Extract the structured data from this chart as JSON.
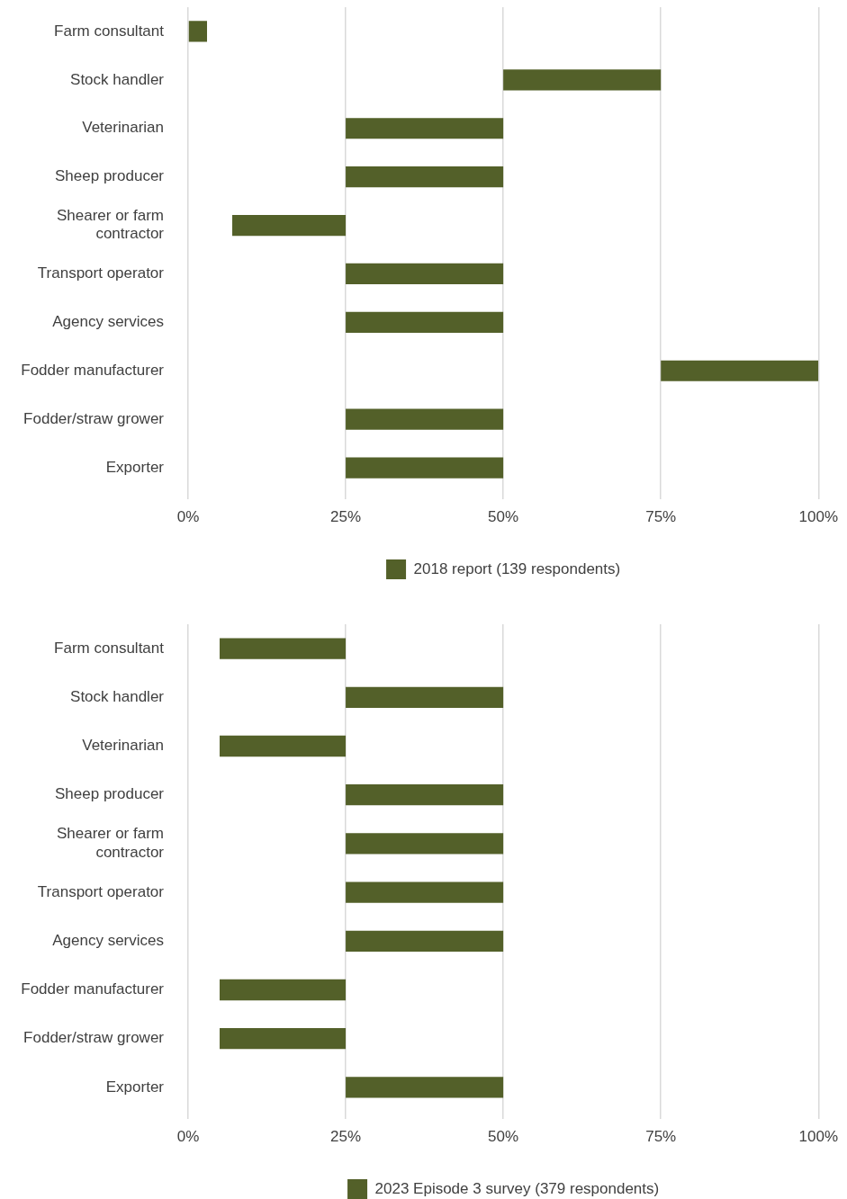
{
  "chart_data": [
    {
      "type": "bar",
      "orientation": "horizontal",
      "categories": [
        "Farm consultant",
        "Stock handler",
        "Veterinarian",
        "Sheep producer",
        "Shearer or farm contractor",
        "Transport operator",
        "Agency services",
        "Fodder manufacturer",
        "Fodder/straw grower",
        "Exporter"
      ],
      "series": [
        {
          "name": "2018 report (139 respondents)",
          "color": "#536029",
          "base": [
            0,
            50,
            25,
            25,
            7,
            25,
            25,
            75,
            25,
            25
          ],
          "values": [
            3,
            25,
            25,
            25,
            18,
            25,
            25,
            25,
            25,
            25
          ]
        }
      ],
      "xlim": [
        0,
        100
      ],
      "xticks": [
        {
          "value": 0,
          "label": "0%"
        },
        {
          "value": 25,
          "label": "25%"
        },
        {
          "value": 50,
          "label": "50%"
        },
        {
          "value": 75,
          "label": "75%"
        },
        {
          "value": 100,
          "label": "100%"
        }
      ],
      "grid": "x",
      "legend": "bottom"
    },
    {
      "type": "bar",
      "orientation": "horizontal",
      "categories": [
        "Farm consultant",
        "Stock handler",
        "Veterinarian",
        "Sheep producer",
        "Shearer or farm contractor",
        "Transport operator",
        "Agency services",
        "Fodder manufacturer",
        "Fodder/straw grower",
        "Exporter"
      ],
      "series": [
        {
          "name": "2023 Episode 3 survey (379 respondents)",
          "color": "#536029",
          "base": [
            5,
            25,
            5,
            25,
            25,
            25,
            25,
            5,
            5,
            25
          ],
          "values": [
            20,
            25,
            20,
            25,
            25,
            25,
            25,
            20,
            20,
            25
          ]
        }
      ],
      "xlim": [
        0,
        100
      ],
      "xticks": [
        {
          "value": 0,
          "label": "0%"
        },
        {
          "value": 25,
          "label": "25%"
        },
        {
          "value": 50,
          "label": "50%"
        },
        {
          "value": 75,
          "label": "75%"
        },
        {
          "value": 100,
          "label": "100%"
        }
      ],
      "grid": "x",
      "legend": "bottom"
    }
  ]
}
